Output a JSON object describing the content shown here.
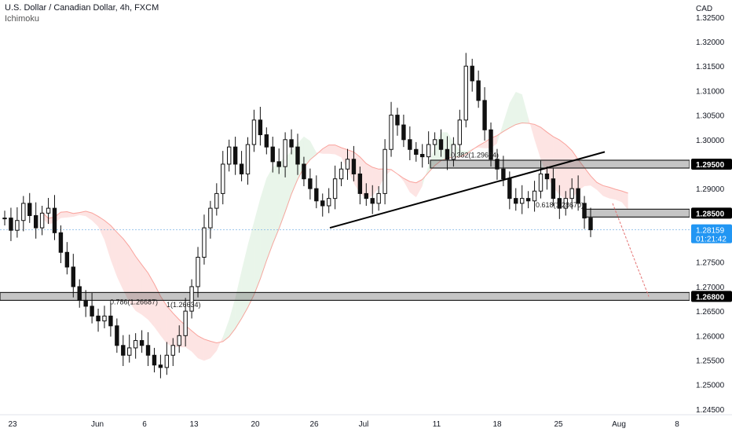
{
  "header": {
    "title": "U.S. Dollar / Canadian Dollar, 4h, FXCM",
    "indicator": "Ichimoku"
  },
  "chart_data": {
    "type": "candlestick",
    "symbol": "USDCAD",
    "interval": "4h",
    "source": "FXCM",
    "currency_label": "CAD",
    "y_ticks": [
      "1.32500",
      "1.32000",
      "1.31500",
      "1.31000",
      "1.30500",
      "1.30000",
      "1.29000",
      "1.27500",
      "1.27000",
      "1.26500",
      "1.26000",
      "1.25500",
      "1.25000",
      "1.24500"
    ],
    "ylim": [
      1.2445,
      1.3285
    ],
    "x_ticks": [
      "23",
      "Jun",
      "6",
      "13",
      "20",
      "26",
      "Jul",
      "11",
      "18",
      "25",
      "Aug",
      "8"
    ],
    "last_price": "1.28159",
    "countdown": "01:21:42",
    "levels": [
      {
        "label": "1.29500",
        "value": 1.295
      },
      {
        "label": "1.28500",
        "value": 1.285
      },
      {
        "label": "1.26800",
        "value": 1.268
      }
    ],
    "fib_labels": [
      {
        "text": "0.382(1.29684)",
        "value": 1.29684
      },
      {
        "text": "0.618(1.28670)",
        "value": 1.2867
      },
      {
        "text": "0.786(1.26687)",
        "value": 1.26687
      },
      {
        "text": "1(1.26634)",
        "value": 1.26634
      }
    ],
    "trendline": {
      "from": 1.282,
      "to": 1.2975
    },
    "close_series": [
      1.284,
      1.2815,
      1.2835,
      1.287,
      1.2845,
      1.282,
      1.285,
      1.286,
      1.281,
      1.277,
      1.274,
      1.27,
      1.2672,
      1.266,
      1.264,
      1.263,
      1.264,
      1.262,
      1.258,
      1.256,
      1.2575,
      1.259,
      1.258,
      1.256,
      1.254,
      1.2535,
      1.256,
      1.258,
      1.26,
      1.265,
      1.27,
      1.276,
      1.282,
      1.286,
      1.289,
      1.295,
      1.2985,
      1.295,
      1.293,
      1.299,
      1.304,
      1.301,
      1.2985,
      1.2955,
      1.2945,
      1.3,
      1.2985,
      1.295,
      1.292,
      1.29,
      1.2875,
      1.2865,
      1.288,
      1.292,
      1.294,
      1.296,
      1.293,
      1.289,
      1.288,
      1.287,
      1.289,
      1.298,
      1.305,
      1.303,
      1.3,
      1.298,
      1.297,
      1.2965,
      1.299,
      1.3,
      1.298,
      1.296,
      1.299,
      1.304,
      1.315,
      1.312,
      1.308,
      1.302,
      1.296,
      1.294,
      1.292,
      1.288,
      1.287,
      1.288,
      1.2875,
      1.2895,
      1.293,
      1.292,
      1.288,
      1.286,
      1.288,
      1.29,
      1.287,
      1.284,
      1.2816
    ]
  }
}
